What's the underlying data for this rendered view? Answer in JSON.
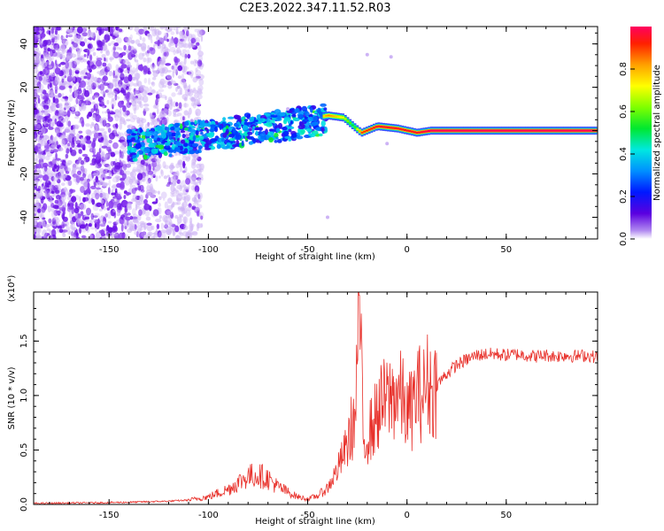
{
  "title": "C2E3.2022.347.11.52.R03",
  "colors": {
    "spectrogram_scatter": "#7a1de8",
    "spectrogram_faint": "#cdb3f5",
    "snr_line": "#e8302a"
  },
  "chart_data": [
    {
      "type": "heatmap",
      "xlabel": "Height of straight line (km)",
      "ylabel": "Frequency (Hz)",
      "xlim": [
        -188,
        96
      ],
      "ylim": [
        -50,
        48
      ],
      "xticks": [
        -150,
        -100,
        -50,
        0,
        50
      ],
      "yticks": [
        40,
        20,
        0,
        -20,
        -40
      ],
      "colorbar": {
        "label": "Normalized spectral amplitude",
        "range": [
          0,
          1
        ],
        "ticks": [
          "0.0",
          "0.2",
          "0.4",
          "0.6",
          "0.8"
        ],
        "colormap": "rainbow (violet to red)"
      },
      "ridge": [
        {
          "x": -135,
          "y": -7,
          "amp": 0.25
        },
        {
          "x": -110,
          "y": -5,
          "amp": 0.3
        },
        {
          "x": -90,
          "y": -3,
          "amp": 0.35
        },
        {
          "x": -70,
          "y": 2,
          "amp": 0.4
        },
        {
          "x": -50,
          "y": 5,
          "amp": 0.45
        },
        {
          "x": -40,
          "y": 7,
          "amp": 0.85
        },
        {
          "x": -32,
          "y": 6,
          "amp": 0.7
        },
        {
          "x": -27,
          "y": 2,
          "amp": 0.5
        },
        {
          "x": -23,
          "y": -1,
          "amp": 0.9
        },
        {
          "x": -15,
          "y": 2,
          "amp": 0.95
        },
        {
          "x": -5,
          "y": 1,
          "amp": 0.95
        },
        {
          "x": 5,
          "y": -1,
          "amp": 0.95
        },
        {
          "x": 12,
          "y": 0,
          "amp": 1.0
        },
        {
          "x": 96,
          "y": 0,
          "amp": 1.0
        }
      ]
    },
    {
      "type": "line",
      "xlabel": "Height of straight line (km)",
      "ylabel": "SNR (10 * v/v)",
      "y_multiplier": "(x10⁴)",
      "xlim": [
        -188,
        96
      ],
      "ylim": [
        0,
        1.95
      ],
      "xticks": [
        -150,
        -100,
        -50,
        0,
        50
      ],
      "yticks": [
        "0.0",
        "0.5",
        "1.0",
        "1.5"
      ],
      "series": [
        {
          "color": "#e8302a",
          "x": [
            -188,
            -160,
            -140,
            -120,
            -110,
            -100,
            -90,
            -80,
            -75,
            -70,
            -65,
            -55,
            -50,
            -45,
            -40,
            -35,
            -30,
            -28,
            -26,
            -24,
            -22,
            -20,
            -17,
            -15,
            -12,
            -10,
            -7,
            -5,
            -2,
            0,
            3,
            5,
            8,
            10,
            13,
            15,
            20,
            25,
            30,
            35,
            40,
            45,
            50,
            55,
            60,
            65,
            70,
            75,
            80,
            85,
            90,
            96
          ],
          "y": [
            0.01,
            0.015,
            0.02,
            0.03,
            0.04,
            0.07,
            0.14,
            0.26,
            0.27,
            0.24,
            0.16,
            0.07,
            0.05,
            0.08,
            0.15,
            0.32,
            0.55,
            0.7,
            0.78,
            1.92,
            0.55,
            0.65,
            0.72,
            0.85,
            0.93,
            0.95,
            1.0,
            1.03,
            0.95,
            0.82,
            0.9,
            1.05,
            1.0,
            1.12,
            1.05,
            1.1,
            1.2,
            1.28,
            1.33,
            1.37,
            1.38,
            1.38,
            1.37,
            1.38,
            1.37,
            1.36,
            1.37,
            1.36,
            1.37,
            1.36,
            1.37,
            1.35
          ]
        }
      ]
    }
  ]
}
